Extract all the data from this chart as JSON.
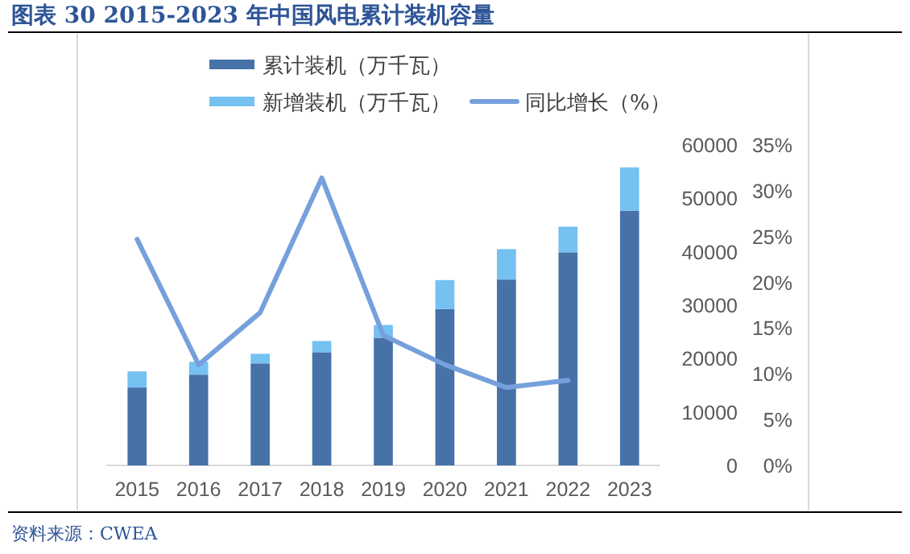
{
  "chart_data": {
    "type": "bar",
    "stacked": true,
    "title": "图表 30   2015-2023 年中国风电累计装机容量",
    "categories": [
      "2015",
      "2016",
      "2017",
      "2018",
      "2019",
      "2020",
      "2021",
      "2022",
      "2023"
    ],
    "series": [
      {
        "name": "累计装机（万千瓦）",
        "color": "#4672a8",
        "values": [
          14600,
          17000,
          19100,
          21200,
          23900,
          29300,
          34800,
          39900,
          47700
        ]
      },
      {
        "name": "新增装机（万千瓦）",
        "color": "#74c1f2",
        "values": [
          3000,
          2400,
          1800,
          2100,
          2400,
          5400,
          5700,
          4800,
          8100
        ]
      },
      {
        "name": "同比增长（%）",
        "type": "line",
        "axis": "y2",
        "color": "#76a0dc",
        "values": [
          24.7,
          11.0,
          16.7,
          31.4,
          14.2,
          11.0,
          8.5,
          9.3,
          null
        ]
      }
    ],
    "ylim": [
      0,
      60000
    ],
    "yticks": [
      0,
      10000,
      20000,
      30000,
      40000,
      50000,
      60000
    ],
    "y2lim": [
      0,
      35
    ],
    "y2ticks": [
      {
        "value": 0,
        "label": "0%"
      },
      {
        "value": 5,
        "label": "5%"
      },
      {
        "value": 10,
        "label": "10%"
      },
      {
        "value": 15,
        "label": "15%"
      },
      {
        "value": 20,
        "label": "20%"
      },
      {
        "value": 25,
        "label": "25%"
      },
      {
        "value": 30,
        "label": "30%"
      },
      {
        "value": 35,
        "label": "35%"
      }
    ],
    "legend": "top",
    "grid": false,
    "marker": "none",
    "line_style": "solid",
    "annotations": [
      "资料来源：CWEA"
    ]
  }
}
